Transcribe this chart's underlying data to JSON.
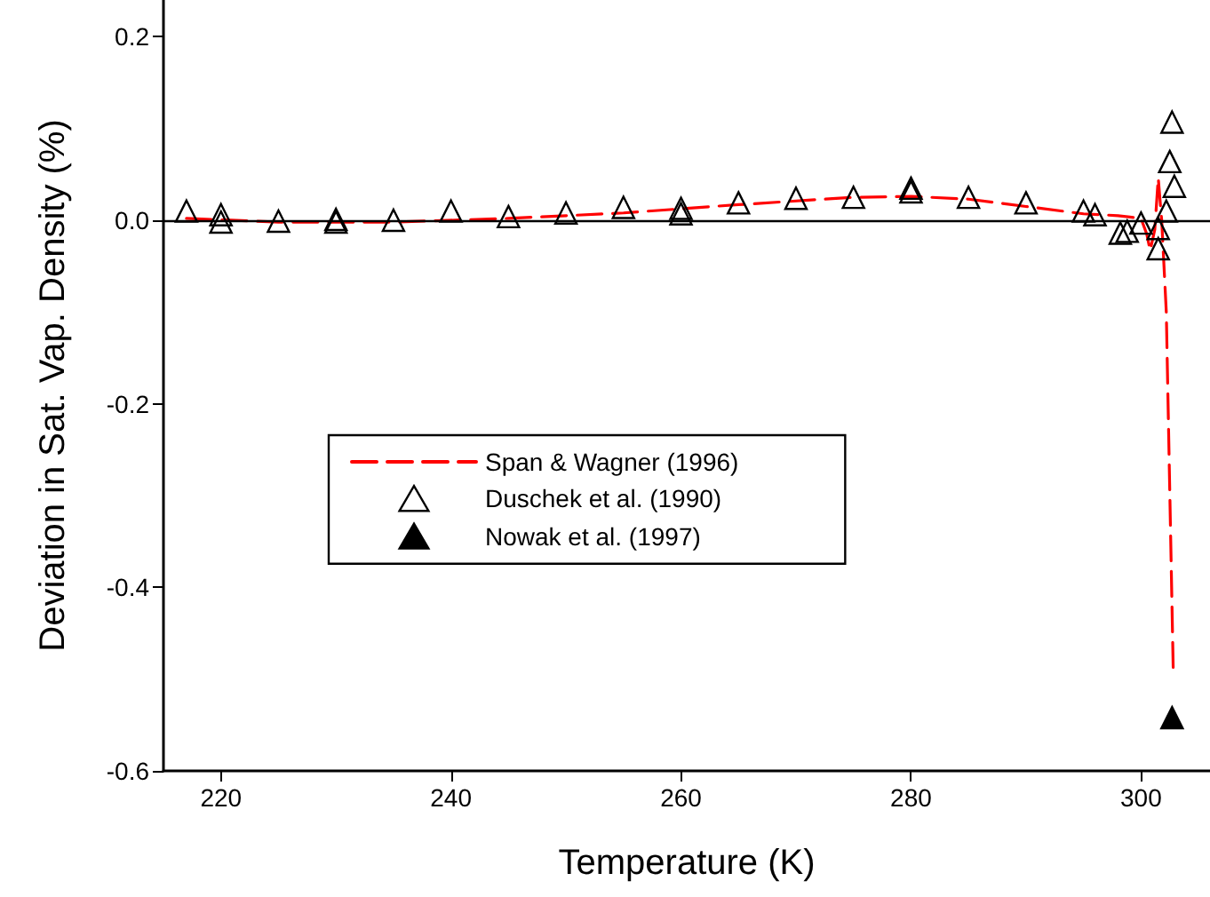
{
  "chart_data": {
    "type": "scatter",
    "xlabel": "Temperature (K)",
    "ylabel": "Deviation in Sat. Vap. Density (%)",
    "xlim": [
      215,
      306
    ],
    "xticks": [
      220,
      240,
      260,
      280,
      300
    ],
    "ylim": [
      -0.6,
      0.24
    ],
    "yticks": [
      {
        "value": -0.6,
        "label": "-0.6"
      },
      {
        "value": -0.4,
        "label": "-0.4"
      },
      {
        "value": -0.2,
        "label": "-0.2"
      },
      {
        "value": 0,
        "label": "0.0"
      },
      {
        "value": 0.2,
        "label": "0.2"
      }
    ],
    "grid": false,
    "legend": "center left",
    "ref_lines": [
      {
        "axis": "y",
        "value": 0,
        "color": "#000000",
        "line_style": "solid"
      }
    ],
    "series": [
      {
        "name": "Span & Wagner (1996)",
        "type": "line",
        "color": "#ff0000",
        "line_style": "dashed",
        "marker": "none",
        "x": [
          217,
          225,
          235,
          245,
          255,
          265,
          275,
          280,
          285,
          290,
          295,
          298,
          300,
          300.5,
          300.8,
          301.2,
          301.5,
          301.8,
          302.2,
          302.8
        ],
        "values": [
          0.002,
          -0.002,
          -0.002,
          0.002,
          0.008,
          0.017,
          0.025,
          0.026,
          0.023,
          0.015,
          0.007,
          0.005,
          0.002,
          -0.015,
          -0.033,
          -0.01,
          0.046,
          0.0,
          -0.1,
          -0.488
        ]
      },
      {
        "name": "Duschek et al. (1990)",
        "color": "#000000",
        "marker": "triangle",
        "x": [
          217,
          220,
          220,
          225,
          230,
          230,
          235,
          240,
          245,
          250,
          255,
          260,
          260,
          265,
          270,
          275,
          280,
          280,
          285,
          290,
          295,
          296,
          298.2,
          298.8,
          300,
          301.5,
          301.5,
          302.2,
          302.9,
          302.5,
          302.7
        ],
        "values": [
          0.01,
          0.006,
          -0.002,
          -0.001,
          0.001,
          -0.002,
          0.0,
          0.01,
          0.004,
          0.008,
          0.014,
          0.013,
          0.007,
          0.019,
          0.024,
          0.025,
          0.031,
          0.035,
          0.025,
          0.019,
          0.01,
          0.006,
          -0.014,
          -0.012,
          -0.003,
          -0.009,
          -0.031,
          0.01,
          0.037,
          0.064,
          0.107
        ]
      },
      {
        "name": "Nowak et al. (1997)",
        "color": "#000000",
        "marker": "triangle",
        "x": [
          302.7
        ],
        "values": [
          -0.542
        ]
      }
    ]
  }
}
